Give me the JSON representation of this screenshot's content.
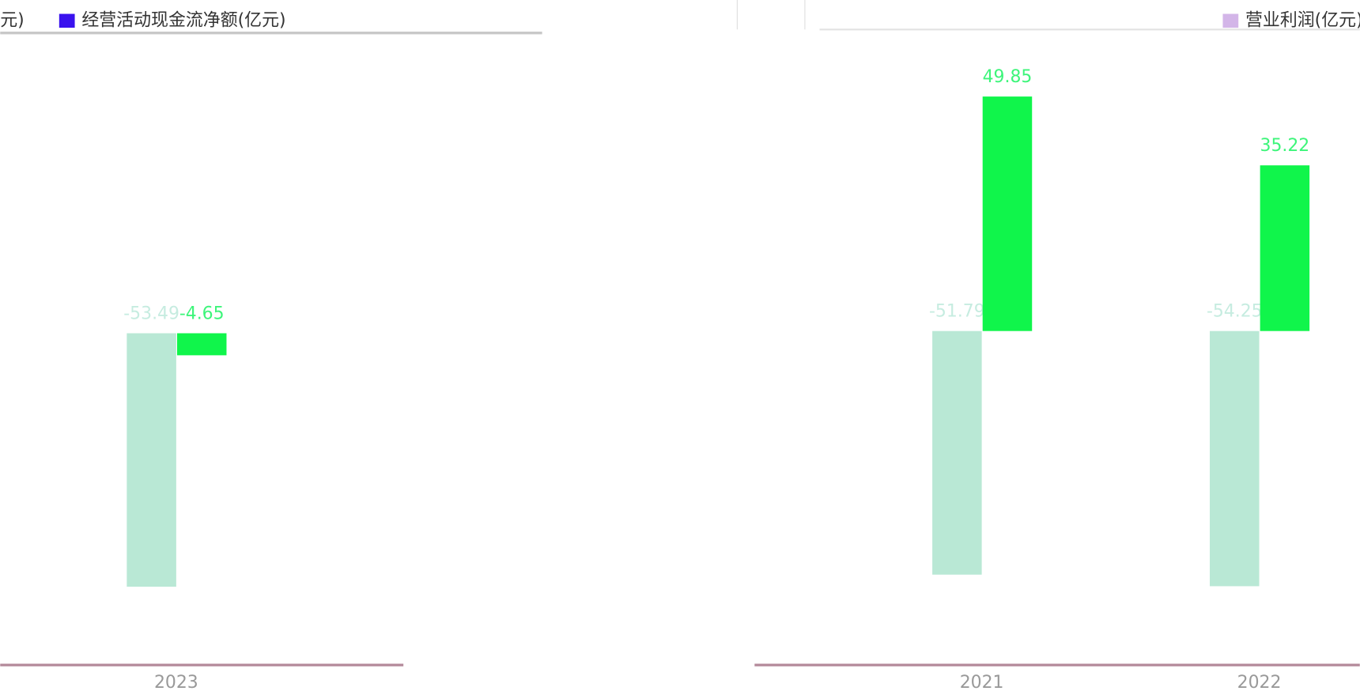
{
  "chart_data": [
    {
      "type": "bar",
      "legend": [
        {
          "label": "元)",
          "color": "#b9e8d5"
        },
        {
          "label": "经营活动现金流净额(亿元)",
          "color": "#3a12ee"
        }
      ],
      "categories": [
        "2023"
      ],
      "series": [
        {
          "color": "#b9e8d5",
          "label_color": "#c6ece0",
          "values": [
            -53.49
          ]
        },
        {
          "color": "#10f54b",
          "label_color": "#3df57a",
          "values": [
            -4.65
          ]
        }
      ],
      "ylim": [
        -70,
        63
      ]
    },
    {
      "type": "bar",
      "legend": [
        {
          "label": "营业利润(亿元)",
          "color": "#d3b5e8"
        }
      ],
      "categories": [
        "2021",
        "2022"
      ],
      "series": [
        {
          "color": "#b9e8d5",
          "label_color": "#c6ece0",
          "values": [
            -51.79,
            -54.25
          ]
        },
        {
          "color": "#10f54b",
          "label_color": "#3df57a",
          "values": [
            49.85,
            35.22
          ]
        }
      ],
      "ylim": [
        -71,
        63
      ]
    }
  ]
}
